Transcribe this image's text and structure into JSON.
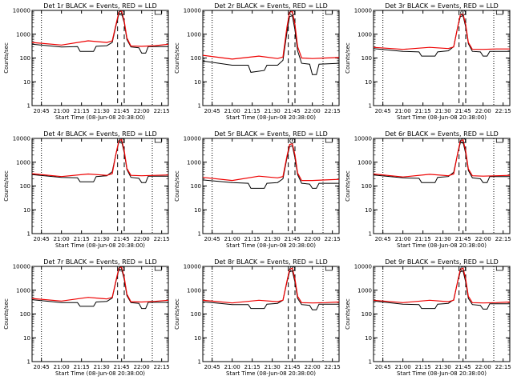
{
  "figure": {
    "colors": {
      "events": "#000000",
      "lld": "#ee0000",
      "background": "#ffffff",
      "axes": "#000000"
    }
  },
  "chart_data": [
    {
      "type": "line",
      "title": "Det 1r  BLACK = Events, RED = LLD",
      "xlabel": "Start Time (08-Jun-08 20:38:00)",
      "ylabel": "Counts/sec",
      "xlim": [
        "20:38",
        "22:20"
      ],
      "ylim": [
        1,
        10000
      ],
      "yscale": "log",
      "xticks": [
        "20:45",
        "21:00",
        "21:15",
        "21:30",
        "21:45",
        "22:00",
        "22:15"
      ],
      "yticks": [
        "1",
        "10",
        "100",
        "1000",
        "10000"
      ],
      "dotted_lines": [
        "20:45",
        "22:08"
      ],
      "dashed_lines": [
        "21:42",
        "21:47"
      ],
      "series": [
        {
          "color": "#000000",
          "x": [
            "20:38",
            "21:00",
            "21:12",
            "21:14",
            "21:24",
            "21:26",
            "21:34",
            "21:38",
            "21:41",
            "21:43",
            "21:45",
            "21:47",
            "21:49",
            "21:52",
            "21:58",
            "22:00",
            "22:03",
            "22:05",
            "22:20"
          ],
          "values": [
            380,
            290,
            300,
            190,
            190,
            310,
            330,
            450,
            2500,
            7000,
            7500,
            3000,
            600,
            290,
            270,
            160,
            160,
            300,
            300
          ]
        },
        {
          "color": "#ee0000",
          "x": [
            "20:38",
            "21:00",
            "21:20",
            "21:34",
            "21:38",
            "21:41",
            "21:43",
            "21:45",
            "21:47",
            "21:49",
            "21:52",
            "22:00",
            "22:10",
            "22:20"
          ],
          "values": [
            450,
            350,
            530,
            450,
            520,
            2800,
            8500,
            9500,
            3500,
            700,
            320,
            310,
            330,
            380
          ]
        }
      ]
    },
    {
      "type": "line",
      "title": "Det 2r  BLACK = Events, RED = LLD",
      "xlabel": "Start Time (08-Jun-08 20:38:00)",
      "ylabel": "Counts/sec",
      "xlim": [
        "20:38",
        "22:20"
      ],
      "ylim": [
        1,
        10000
      ],
      "yscale": "log",
      "xticks": [
        "20:45",
        "21:00",
        "21:15",
        "21:30",
        "21:45",
        "22:00",
        "22:15"
      ],
      "yticks": [
        "1",
        "10",
        "100",
        "1000",
        "10000"
      ],
      "dotted_lines": [
        "20:45",
        "22:08"
      ],
      "dashed_lines": [
        "21:42",
        "21:47"
      ],
      "series": [
        {
          "color": "#000000",
          "x": [
            "20:38",
            "21:00",
            "21:12",
            "21:14",
            "21:24",
            "21:26",
            "21:34",
            "21:38",
            "21:41",
            "21:43",
            "21:45",
            "21:47",
            "21:49",
            "21:52",
            "21:58",
            "22:00",
            "22:03",
            "22:05",
            "22:20"
          ],
          "values": [
            75,
            50,
            50,
            25,
            30,
            50,
            50,
            80,
            1200,
            5500,
            6000,
            1500,
            200,
            60,
            55,
            20,
            20,
            55,
            60
          ]
        },
        {
          "color": "#ee0000",
          "x": [
            "20:38",
            "21:00",
            "21:20",
            "21:34",
            "21:38",
            "21:41",
            "21:43",
            "21:45",
            "21:47",
            "21:49",
            "21:52",
            "22:00",
            "22:10",
            "22:20"
          ],
          "values": [
            130,
            90,
            120,
            95,
            110,
            2000,
            8500,
            9000,
            2500,
            300,
            100,
            95,
            100,
            105
          ]
        }
      ]
    },
    {
      "type": "line",
      "title": "Det 3r  BLACK = Events, RED = LLD",
      "xlabel": "Start Time (08-Jun-08 20:38:00)",
      "ylabel": "Counts/sec",
      "xlim": [
        "20:38",
        "22:20"
      ],
      "ylim": [
        1,
        10000
      ],
      "yscale": "log",
      "xticks": [
        "20:45",
        "21:00",
        "21:15",
        "21:30",
        "21:45",
        "22:00",
        "22:15"
      ],
      "yticks": [
        "1",
        "10",
        "100",
        "1000",
        "10000"
      ],
      "dotted_lines": [
        "20:45",
        "22:08"
      ],
      "dashed_lines": [
        "21:42",
        "21:47"
      ],
      "series": [
        {
          "color": "#000000",
          "x": [
            "20:38",
            "21:00",
            "21:12",
            "21:14",
            "21:24",
            "21:26",
            "21:34",
            "21:38",
            "21:41",
            "21:43",
            "21:45",
            "21:47",
            "21:49",
            "21:52",
            "21:58",
            "22:00",
            "22:03",
            "22:05",
            "22:20"
          ],
          "values": [
            250,
            190,
            180,
            120,
            120,
            180,
            200,
            300,
            2000,
            5500,
            6000,
            2000,
            400,
            190,
            180,
            120,
            120,
            190,
            190
          ]
        },
        {
          "color": "#ee0000",
          "x": [
            "20:38",
            "21:00",
            "21:20",
            "21:34",
            "21:38",
            "21:41",
            "21:43",
            "21:45",
            "21:47",
            "21:49",
            "21:52",
            "22:00",
            "22:10",
            "22:20"
          ],
          "values": [
            280,
            230,
            280,
            250,
            290,
            2000,
            6500,
            7000,
            2500,
            450,
            230,
            230,
            240,
            240
          ]
        }
      ]
    },
    {
      "type": "line",
      "title": "Det 4r  BLACK = Events, RED = LLD",
      "xlabel": "Start Time (08-Jun-08 20:38:00)",
      "ylabel": "Counts/sec",
      "xlim": [
        "20:38",
        "22:20"
      ],
      "ylim": [
        1,
        10000
      ],
      "yscale": "log",
      "xticks": [
        "20:45",
        "21:00",
        "21:15",
        "21:30",
        "21:45",
        "22:00",
        "22:15"
      ],
      "yticks": [
        "1",
        "10",
        "100",
        "1000",
        "10000"
      ],
      "dotted_lines": [
        "20:45",
        "22:08"
      ],
      "dashed_lines": [
        "21:42",
        "21:47"
      ],
      "series": [
        {
          "color": "#000000",
          "x": [
            "20:38",
            "21:00",
            "21:12",
            "21:14",
            "21:24",
            "21:26",
            "21:34",
            "21:38",
            "21:41",
            "21:43",
            "21:45",
            "21:47",
            "21:49",
            "21:52",
            "21:58",
            "22:00",
            "22:03",
            "22:05",
            "22:20"
          ],
          "values": [
            300,
            230,
            220,
            150,
            150,
            250,
            270,
            400,
            2500,
            7000,
            7500,
            2500,
            500,
            230,
            210,
            140,
            140,
            260,
            260
          ]
        },
        {
          "color": "#ee0000",
          "x": [
            "20:38",
            "21:00",
            "21:20",
            "21:34",
            "21:38",
            "21:41",
            "21:43",
            "21:45",
            "21:47",
            "21:49",
            "21:52",
            "22:00",
            "22:10",
            "22:20"
          ],
          "values": [
            330,
            250,
            320,
            280,
            330,
            2500,
            8000,
            9000,
            3000,
            550,
            280,
            270,
            280,
            290
          ]
        }
      ]
    },
    {
      "type": "line",
      "title": "Det 5r  BLACK = Events, RED = LLD",
      "xlabel": "Start Time (08-Jun-08 20:38:00)",
      "ylabel": "Counts/sec",
      "xlim": [
        "20:38",
        "22:20"
      ],
      "ylim": [
        1,
        10000
      ],
      "yscale": "log",
      "xticks": [
        "20:45",
        "21:00",
        "21:15",
        "21:30",
        "21:45",
        "22:00",
        "22:15"
      ],
      "yticks": [
        "1",
        "10",
        "100",
        "1000",
        "10000"
      ],
      "dotted_lines": [
        "20:45",
        "22:08"
      ],
      "dashed_lines": [
        "21:42",
        "21:47"
      ],
      "series": [
        {
          "color": "#000000",
          "x": [
            "20:38",
            "21:00",
            "21:12",
            "21:14",
            "21:24",
            "21:26",
            "21:34",
            "21:38",
            "21:41",
            "21:43",
            "21:45",
            "21:47",
            "21:49",
            "21:52",
            "21:58",
            "22:00",
            "22:03",
            "22:05",
            "22:20"
          ],
          "values": [
            180,
            140,
            130,
            80,
            80,
            130,
            140,
            200,
            1500,
            4500,
            5000,
            1500,
            300,
            130,
            120,
            80,
            80,
            130,
            130
          ]
        },
        {
          "color": "#ee0000",
          "x": [
            "20:38",
            "21:00",
            "21:20",
            "21:34",
            "21:38",
            "21:41",
            "21:43",
            "21:45",
            "21:47",
            "21:49",
            "21:52",
            "22:00",
            "22:10",
            "22:20"
          ],
          "values": [
            230,
            170,
            260,
            220,
            250,
            1800,
            5500,
            6000,
            2000,
            350,
            170,
            170,
            180,
            190
          ]
        }
      ]
    },
    {
      "type": "line",
      "title": "Det 6r  BLACK = Events, RED = LLD",
      "xlabel": "Start Time (08-Jun-08 20:38:00)",
      "ylabel": "Counts/sec",
      "xlim": [
        "20:38",
        "22:20"
      ],
      "ylim": [
        1,
        10000
      ],
      "yscale": "log",
      "xticks": [
        "20:45",
        "21:00",
        "21:15",
        "21:30",
        "21:45",
        "22:00",
        "22:15"
      ],
      "yticks": [
        "1",
        "10",
        "100",
        "1000",
        "10000"
      ],
      "dotted_lines": [
        "20:45",
        "22:08"
      ],
      "dashed_lines": [
        "21:42",
        "21:47"
      ],
      "series": [
        {
          "color": "#000000",
          "x": [
            "20:38",
            "21:00",
            "21:12",
            "21:14",
            "21:24",
            "21:26",
            "21:34",
            "21:38",
            "21:41",
            "21:43",
            "21:45",
            "21:47",
            "21:49",
            "21:52",
            "21:58",
            "22:00",
            "22:03",
            "22:05",
            "22:20"
          ],
          "values": [
            290,
            220,
            210,
            140,
            140,
            230,
            250,
            380,
            2300,
            6500,
            7000,
            2300,
            450,
            220,
            200,
            140,
            140,
            250,
            250
          ]
        },
        {
          "color": "#ee0000",
          "x": [
            "20:38",
            "21:00",
            "21:20",
            "21:34",
            "21:38",
            "21:41",
            "21:43",
            "21:45",
            "21:47",
            "21:49",
            "21:52",
            "22:00",
            "22:10",
            "22:20"
          ],
          "values": [
            320,
            240,
            310,
            270,
            320,
            2400,
            7800,
            8800,
            2900,
            520,
            270,
            260,
            270,
            280
          ]
        }
      ]
    },
    {
      "type": "line",
      "title": "Det 7r  BLACK = Events, RED = LLD",
      "xlabel": "Start Time (08-Jun-08 20:38:00)",
      "ylabel": "Counts/sec",
      "xlim": [
        "20:38",
        "22:20"
      ],
      "ylim": [
        1,
        10000
      ],
      "yscale": "log",
      "xticks": [
        "20:45",
        "21:00",
        "21:15",
        "21:30",
        "21:45",
        "22:00",
        "22:15"
      ],
      "yticks": [
        "1",
        "10",
        "100",
        "1000",
        "10000"
      ],
      "dotted_lines": [
        "20:45",
        "22:08"
      ],
      "dashed_lines": [
        "21:42",
        "21:47"
      ],
      "series": [
        {
          "color": "#000000",
          "x": [
            "20:38",
            "21:00",
            "21:12",
            "21:14",
            "21:24",
            "21:26",
            "21:34",
            "21:38",
            "21:41",
            "21:43",
            "21:45",
            "21:47",
            "21:49",
            "21:52",
            "21:58",
            "22:00",
            "22:03",
            "22:05",
            "22:20"
          ],
          "values": [
            400,
            300,
            300,
            210,
            210,
            320,
            340,
            470,
            2600,
            7200,
            7800,
            2800,
            600,
            300,
            280,
            170,
            170,
            310,
            310
          ]
        },
        {
          "color": "#ee0000",
          "x": [
            "20:38",
            "21:00",
            "21:20",
            "21:34",
            "21:38",
            "21:41",
            "21:43",
            "21:45",
            "21:47",
            "21:49",
            "21:52",
            "22:00",
            "22:10",
            "22:20"
          ],
          "values": [
            450,
            350,
            500,
            430,
            500,
            2800,
            8500,
            9500,
            3400,
            680,
            330,
            320,
            340,
            380
          ]
        }
      ]
    },
    {
      "type": "line",
      "title": "Det 8r  BLACK = Events, RED = LLD",
      "xlabel": "Start Time (08-Jun-08 20:38:00)",
      "ylabel": "Counts/sec",
      "xlim": [
        "20:38",
        "22:20"
      ],
      "ylim": [
        1,
        10000
      ],
      "yscale": "log",
      "xticks": [
        "20:45",
        "21:00",
        "21:15",
        "21:30",
        "21:45",
        "22:00",
        "22:15"
      ],
      "yticks": [
        "1",
        "10",
        "100",
        "1000",
        "10000"
      ],
      "dotted_lines": [
        "20:45",
        "22:08"
      ],
      "dashed_lines": [
        "21:42",
        "21:47"
      ],
      "series": [
        {
          "color": "#000000",
          "x": [
            "20:38",
            "21:00",
            "21:12",
            "21:14",
            "21:24",
            "21:26",
            "21:34",
            "21:38",
            "21:41",
            "21:43",
            "21:45",
            "21:47",
            "21:49",
            "21:52",
            "21:58",
            "22:00",
            "22:03",
            "22:05",
            "22:20"
          ],
          "values": [
            330,
            250,
            250,
            170,
            170,
            260,
            280,
            380,
            2200,
            6000,
            6500,
            2200,
            450,
            250,
            230,
            150,
            150,
            260,
            260
          ]
        },
        {
          "color": "#ee0000",
          "x": [
            "20:38",
            "21:00",
            "21:20",
            "21:34",
            "21:38",
            "21:41",
            "21:43",
            "21:45",
            "21:47",
            "21:49",
            "21:52",
            "22:00",
            "22:10",
            "22:20"
          ],
          "values": [
            380,
            290,
            380,
            330,
            380,
            2400,
            7500,
            8500,
            2900,
            550,
            300,
            290,
            300,
            320
          ]
        }
      ]
    },
    {
      "type": "line",
      "title": "Det 9r  BLACK = Events, RED = LLD",
      "xlabel": "Start Time (08-Jun-08 20:38:00)",
      "ylabel": "Counts/sec",
      "xlim": [
        "20:38",
        "22:20"
      ],
      "ylim": [
        1,
        10000
      ],
      "yscale": "log",
      "xticks": [
        "20:45",
        "21:00",
        "21:15",
        "21:30",
        "21:45",
        "22:00",
        "22:15"
      ],
      "yticks": [
        "1",
        "10",
        "100",
        "1000",
        "10000"
      ],
      "dotted_lines": [
        "20:45",
        "22:08"
      ],
      "dashed_lines": [
        "21:42",
        "21:47"
      ],
      "series": [
        {
          "color": "#000000",
          "x": [
            "20:38",
            "21:00",
            "21:12",
            "21:14",
            "21:24",
            "21:26",
            "21:34",
            "21:38",
            "21:41",
            "21:43",
            "21:45",
            "21:47",
            "21:49",
            "21:52",
            "21:58",
            "22:00",
            "22:03",
            "22:05",
            "22:20"
          ],
          "values": [
            350,
            260,
            250,
            170,
            170,
            260,
            280,
            400,
            2300,
            6000,
            6500,
            2200,
            450,
            250,
            230,
            160,
            160,
            270,
            270
          ]
        },
        {
          "color": "#ee0000",
          "x": [
            "20:38",
            "21:00",
            "21:20",
            "21:34",
            "21:38",
            "21:41",
            "21:43",
            "21:45",
            "21:47",
            "21:49",
            "21:52",
            "22:00",
            "22:10",
            "22:20"
          ],
          "values": [
            380,
            300,
            380,
            330,
            380,
            2400,
            7500,
            8500,
            2900,
            550,
            300,
            290,
            300,
            320
          ]
        }
      ]
    }
  ]
}
